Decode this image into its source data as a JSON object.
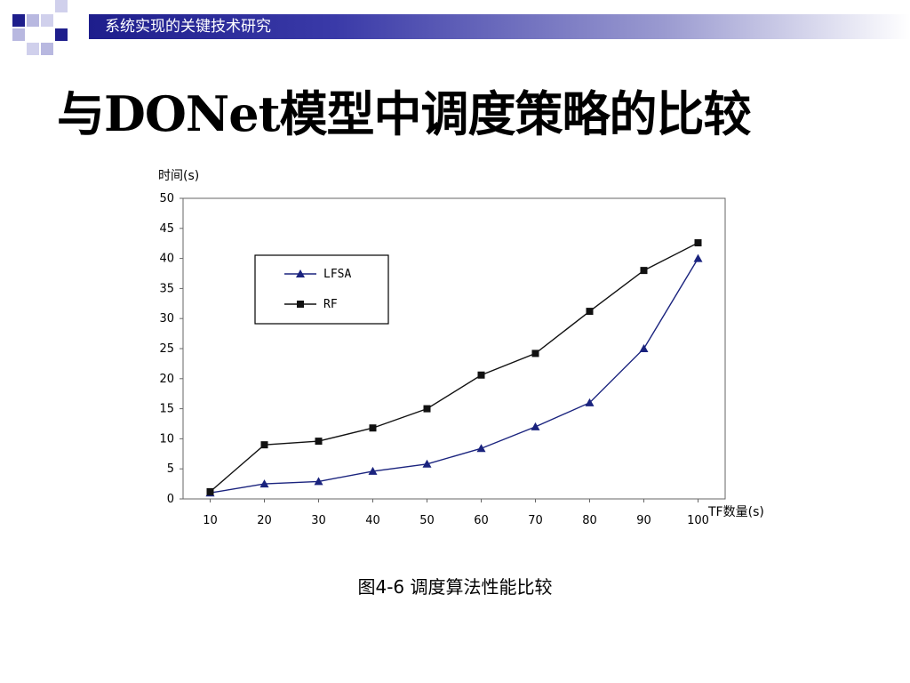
{
  "header": {
    "text": "系统实现的关键技术研究"
  },
  "title": {
    "prefix": "与",
    "bold": "DONet",
    "suffix": "模型中调度策略的比较"
  },
  "caption": "图4-6 调度算法性能比较",
  "colors": {
    "header_dark": "#1e1e8c",
    "lfsa": "#1a237e",
    "rf": "#111111",
    "accent_square": "#1e1e8c"
  },
  "chart_data": {
    "type": "line",
    "ylabel": "时间(s)",
    "xlabel": "TF数量(s)",
    "x": [
      10,
      20,
      30,
      40,
      50,
      60,
      70,
      80,
      90,
      100
    ],
    "xlim": [
      5,
      105
    ],
    "ylim": [
      0,
      50
    ],
    "yticks": [
      0,
      5,
      10,
      15,
      20,
      25,
      30,
      35,
      40,
      45,
      50
    ],
    "legend_position": "top-left",
    "grid": false,
    "series": [
      {
        "name": "LFSA",
        "marker": "triangle",
        "color": "#1a237e",
        "values": [
          1.0,
          2.5,
          2.9,
          4.6,
          5.8,
          8.4,
          12.0,
          16.0,
          25.0,
          40.0
        ]
      },
      {
        "name": "RF",
        "marker": "square",
        "color": "#111111",
        "values": [
          1.2,
          9.0,
          9.6,
          11.8,
          15.0,
          20.6,
          24.2,
          31.2,
          38.0,
          42.6
        ]
      }
    ]
  }
}
